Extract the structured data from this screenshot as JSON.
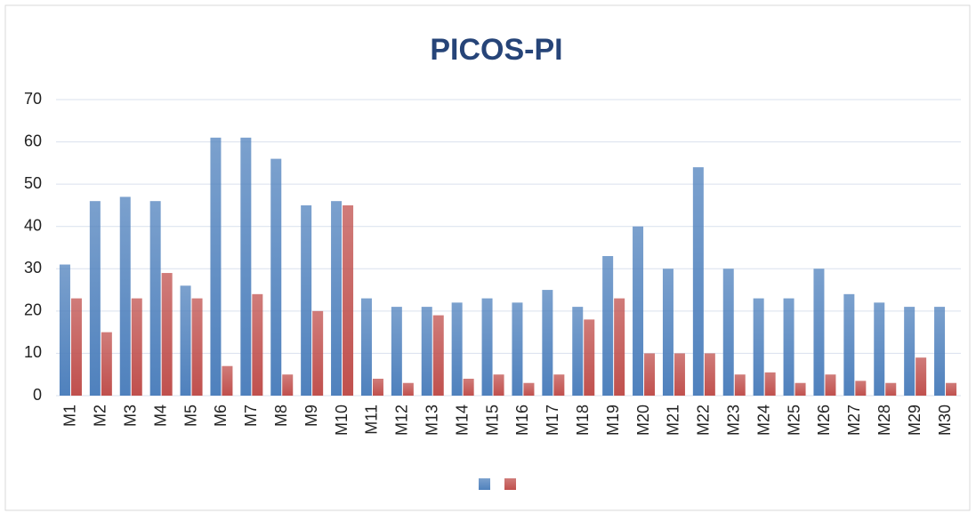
{
  "chart_data": {
    "type": "bar",
    "title": "PICOS-PI",
    "categories": [
      "M1",
      "M2",
      "M3",
      "M4",
      "M5",
      "M6",
      "M7",
      "M8",
      "M9",
      "M10",
      "M11",
      "M12",
      "M13",
      "M14",
      "M15",
      "M16",
      "M17",
      "M18",
      "M19",
      "M20",
      "M21",
      "M22",
      "M23",
      "M24",
      "M25",
      "M26",
      "M27",
      "M28",
      "M29",
      "M30"
    ],
    "series": [
      {
        "color": "#4f81bd",
        "values": [
          31,
          46,
          47,
          46,
          26,
          61,
          61,
          56,
          45,
          46,
          23,
          21,
          21,
          22,
          23,
          22,
          25,
          21,
          33,
          40,
          30,
          54,
          30,
          23,
          23,
          30,
          24,
          22,
          21,
          21
        ]
      },
      {
        "color": "#c0504d",
        "values": [
          23,
          15,
          23,
          29,
          23,
          7,
          24,
          5,
          20,
          45,
          4,
          3,
          19,
          4,
          5,
          3,
          5,
          18,
          23,
          10,
          10,
          10,
          5,
          5.5,
          3,
          5,
          3.5,
          3,
          9,
          3
        ]
      }
    ],
    "ylim": [
      0,
      70
    ],
    "yticks": [
      0,
      10,
      20,
      30,
      40,
      50,
      60,
      70
    ],
    "grid": true,
    "legend": "bottom"
  }
}
